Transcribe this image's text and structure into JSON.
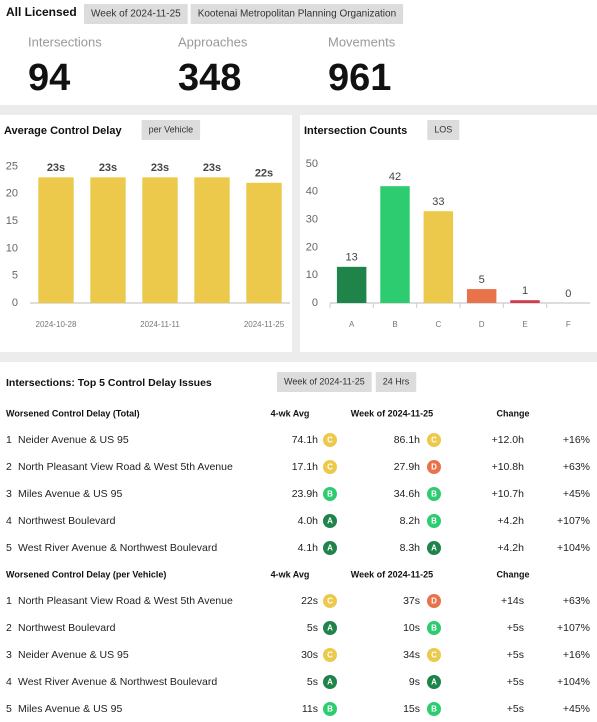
{
  "header": {
    "title": "All Licensed",
    "tags": [
      "Week of 2024-11-25",
      "Kootenai Metropolitan Planning Organization"
    ]
  },
  "kpis": [
    {
      "label": "Intersections",
      "value": 94
    },
    {
      "label": "Approaches",
      "value": 348
    },
    {
      "label": "Movements",
      "value": 961
    }
  ],
  "chart_data": [
    {
      "type": "bar",
      "title": "Average Control Delay",
      "button": "per Vehicle",
      "categories": [
        "2024-10-28",
        null,
        "2024-11-11",
        null,
        "2024-11-25"
      ],
      "values": [
        23,
        23,
        23,
        23,
        22
      ],
      "value_labels": [
        "23s",
        "23s",
        "23s",
        "23s",
        "22s"
      ],
      "color": "#ecc94b",
      "ylim": [
        0,
        28
      ],
      "yticks": [
        0,
        5,
        10,
        15,
        20,
        25
      ]
    },
    {
      "type": "bar",
      "title": "Intersection Counts",
      "button": "LOS",
      "categories": [
        "A",
        "B",
        "C",
        "D",
        "E",
        "F"
      ],
      "values": [
        13,
        42,
        33,
        5,
        1,
        0
      ],
      "colors": [
        "#1e8449",
        "#2ecc71",
        "#ecc94b",
        "#e8734a",
        "#d63a4a",
        "#999999"
      ],
      "ylim": [
        0,
        55
      ],
      "yticks": [
        0,
        10,
        20,
        30,
        40,
        50
      ]
    }
  ],
  "issues": {
    "title": "Intersections: Top 5 Control Delay Issues",
    "tags": [
      "Week of 2024-11-25",
      "24 Hrs"
    ],
    "los_colors": {
      "A": "#1e8449",
      "B": "#2ecc71",
      "C": "#ecc94b",
      "D": "#e8734a"
    },
    "sections": [
      {
        "heading": "Worsened Control Delay (Total)",
        "columns": [
          "4-wk Avg",
          "Week of 2024-11-25",
          "Change"
        ],
        "rows": [
          {
            "rank": 1,
            "name": "Neider Avenue & US 95",
            "avg": "74.1h",
            "avg_los": "C",
            "week": "86.1h",
            "week_los": "C",
            "change": "+12.0h",
            "pct": "+16%"
          },
          {
            "rank": 2,
            "name": "North Pleasant View Road & West 5th Avenue",
            "avg": "17.1h",
            "avg_los": "C",
            "week": "27.9h",
            "week_los": "D",
            "change": "+10.8h",
            "pct": "+63%"
          },
          {
            "rank": 3,
            "name": "Miles Avenue & US 95",
            "avg": "23.9h",
            "avg_los": "B",
            "week": "34.6h",
            "week_los": "B",
            "change": "+10.7h",
            "pct": "+45%"
          },
          {
            "rank": 4,
            "name": "Northwest Boulevard",
            "avg": "4.0h",
            "avg_los": "A",
            "week": "8.2h",
            "week_los": "B",
            "change": "+4.2h",
            "pct": "+107%"
          },
          {
            "rank": 5,
            "name": "West River Avenue & Northwest Boulevard",
            "avg": "4.1h",
            "avg_los": "A",
            "week": "8.3h",
            "week_los": "A",
            "change": "+4.2h",
            "pct": "+104%"
          }
        ]
      },
      {
        "heading": "Worsened Control Delay (per Vehicle)",
        "columns": [
          "4-wk Avg",
          "Week of 2024-11-25",
          "Change"
        ],
        "rows": [
          {
            "rank": 1,
            "name": "North Pleasant View Road & West 5th Avenue",
            "avg": "22s",
            "avg_los": "C",
            "week": "37s",
            "week_los": "D",
            "change": "+14s",
            "pct": "+63%"
          },
          {
            "rank": 2,
            "name": "Northwest Boulevard",
            "avg": "5s",
            "avg_los": "A",
            "week": "10s",
            "week_los": "B",
            "change": "+5s",
            "pct": "+107%"
          },
          {
            "rank": 3,
            "name": "Neider Avenue & US 95",
            "avg": "30s",
            "avg_los": "C",
            "week": "34s",
            "week_los": "C",
            "change": "+5s",
            "pct": "+16%"
          },
          {
            "rank": 4,
            "name": "West River Avenue & Northwest Boulevard",
            "avg": "5s",
            "avg_los": "A",
            "week": "9s",
            "week_los": "A",
            "change": "+5s",
            "pct": "+104%"
          },
          {
            "rank": 5,
            "name": "Miles Avenue & US 95",
            "avg": "11s",
            "avg_los": "B",
            "week": "15s",
            "week_los": "B",
            "change": "+5s",
            "pct": "+45%"
          }
        ]
      }
    ]
  }
}
